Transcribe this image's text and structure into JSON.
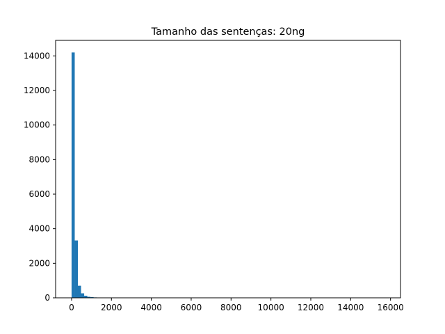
{
  "chart_data": {
    "type": "bar",
    "title": "Tamanho das sentenças: 20ng",
    "xlabel": "",
    "ylabel": "",
    "bar_color": "#1f77b4",
    "xlim": [
      -800,
      16500
    ],
    "ylim": [
      0,
      14900
    ],
    "grid": false,
    "legend": "none",
    "x_ticks": [
      0,
      2000,
      4000,
      6000,
      8000,
      10000,
      12000,
      14000,
      16000
    ],
    "x_tick_labels": [
      "0",
      "2000",
      "4000",
      "6000",
      "8000",
      "10000",
      "12000",
      "14000",
      "16000"
    ],
    "y_ticks": [
      0,
      2000,
      4000,
      6000,
      8000,
      10000,
      12000,
      14000
    ],
    "y_tick_labels": [
      "0",
      "2000",
      "4000",
      "6000",
      "8000",
      "10000",
      "12000",
      "14000"
    ],
    "bin_width": 158,
    "bins": [
      {
        "x": 0,
        "count": 14200
      },
      {
        "x": 158,
        "count": 3320
      },
      {
        "x": 316,
        "count": 700
      },
      {
        "x": 474,
        "count": 260
      },
      {
        "x": 632,
        "count": 120
      },
      {
        "x": 790,
        "count": 60
      },
      {
        "x": 948,
        "count": 40
      },
      {
        "x": 1106,
        "count": 25
      },
      {
        "x": 1264,
        "count": 12
      },
      {
        "x": 1422,
        "count": 8
      }
    ]
  }
}
